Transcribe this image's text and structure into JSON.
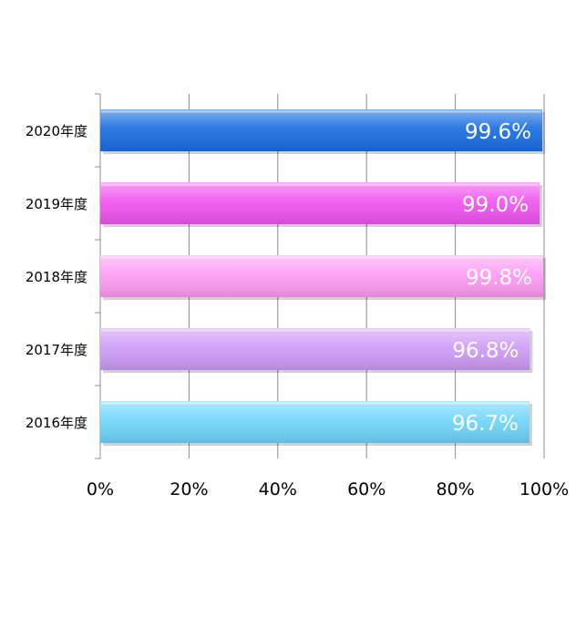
{
  "chart_data": {
    "type": "bar",
    "orientation": "horizontal",
    "categories": [
      "2020年度",
      "2019年度",
      "2018年度",
      "2017年度",
      "2016年度"
    ],
    "values": [
      99.6,
      99.0,
      99.8,
      96.8,
      96.7
    ],
    "value_labels": [
      "99.6%",
      "99.0%",
      "99.8%",
      "96.8%",
      "96.7%"
    ],
    "colors": [
      "#1a6fe0",
      "#f055f0",
      "#ff9cf5",
      "#cf9cf7",
      "#6fd6fa"
    ],
    "xlim": [
      0,
      100
    ],
    "x_ticks": [
      "0%",
      "20%",
      "40%",
      "60%",
      "80%",
      "100%"
    ],
    "grid": true,
    "legend": "none"
  }
}
